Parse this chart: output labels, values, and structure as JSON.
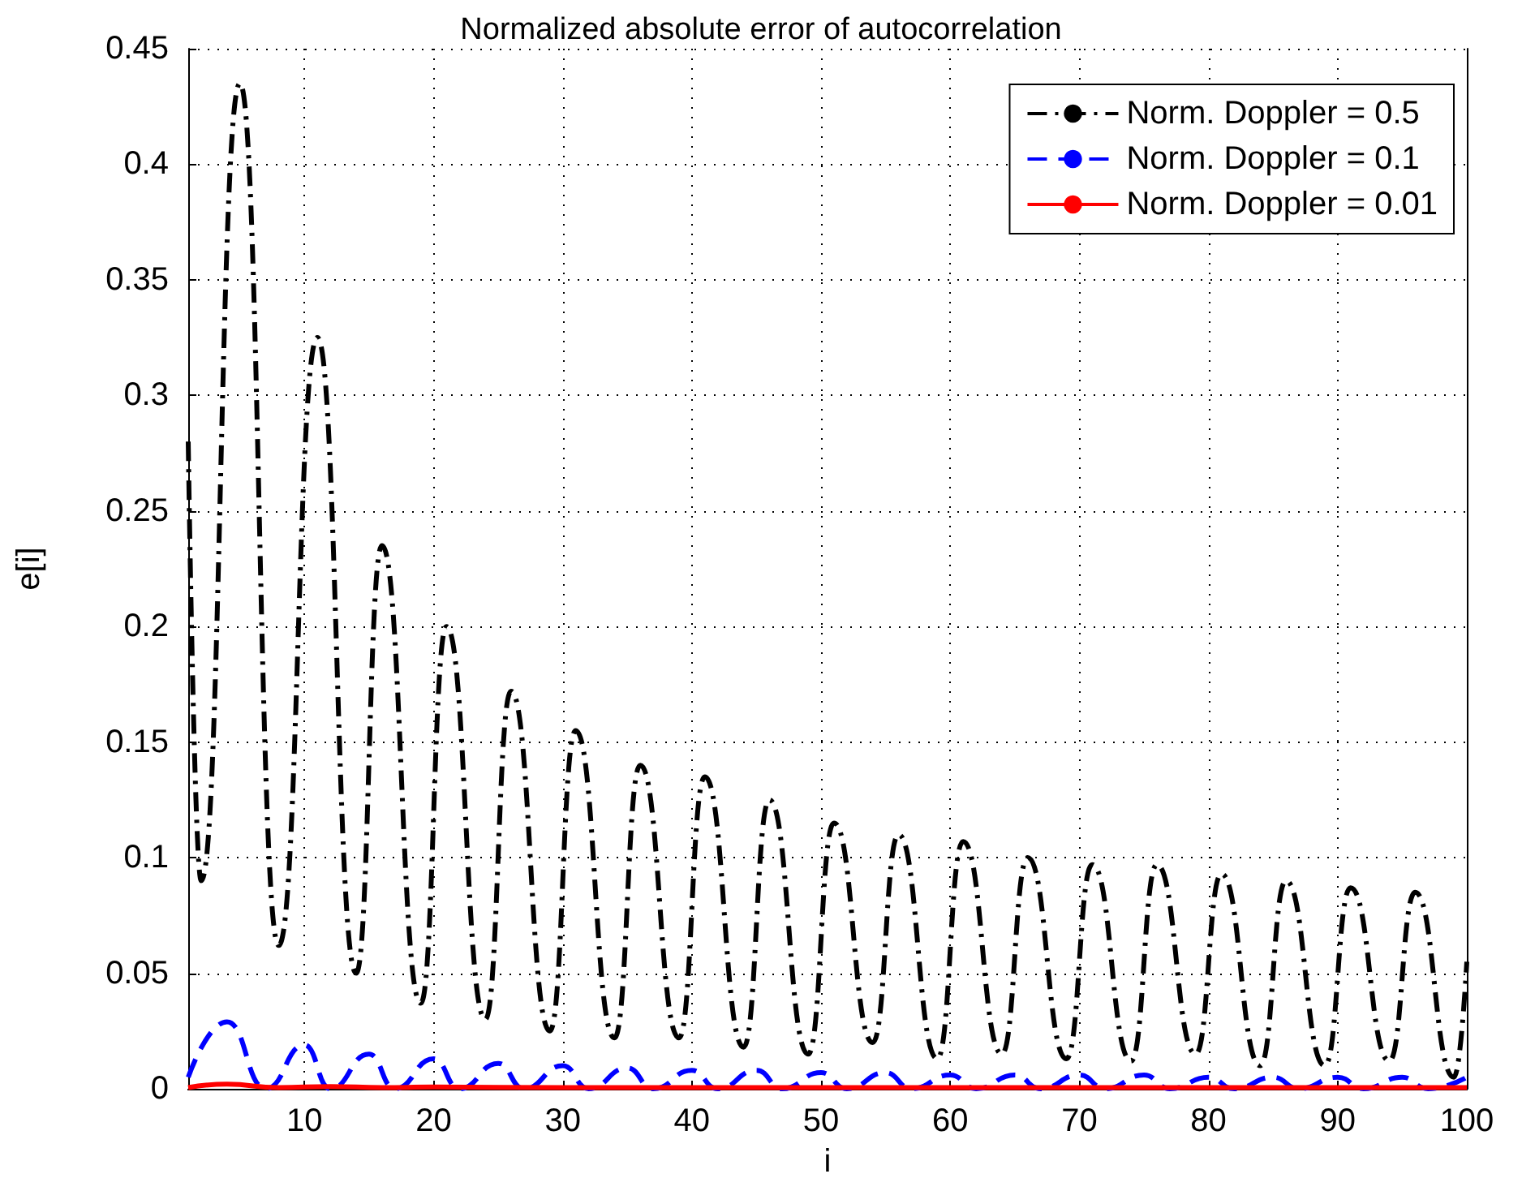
{
  "chart_data": {
    "type": "line",
    "title": "Normalized absolute error of autocorrelation",
    "xlabel": "i",
    "ylabel": "e[i]",
    "xlim": [
      1,
      100
    ],
    "xticks": [
      10,
      20,
      30,
      40,
      50,
      60,
      70,
      80,
      90,
      100
    ],
    "ylim": [
      0,
      0.45
    ],
    "yticks": [
      0,
      0.05,
      0.1,
      0.15,
      0.2,
      0.25,
      0.3,
      0.35,
      0.4,
      0.45
    ],
    "grid": true,
    "legend": "top right",
    "marker": "none",
    "series": [
      {
        "name": "Norm. Doppler = 0.5",
        "color": "#000000",
        "line_style": "dashdot",
        "x": [
          1,
          2,
          5,
          8,
          11,
          14,
          16,
          19,
          21,
          24,
          26,
          29,
          31,
          34,
          36,
          39,
          41,
          44,
          46,
          49,
          51,
          54,
          56,
          59,
          61,
          64,
          66,
          69,
          71,
          74,
          76,
          79,
          81,
          84,
          86,
          89,
          91,
          94,
          96,
          99,
          100
        ],
        "values": [
          0.28,
          0.09,
          0.435,
          0.062,
          0.325,
          0.05,
          0.235,
          0.037,
          0.2,
          0.03,
          0.172,
          0.025,
          0.155,
          0.022,
          0.14,
          0.022,
          0.135,
          0.018,
          0.125,
          0.015,
          0.115,
          0.02,
          0.11,
          0.013,
          0.107,
          0.015,
          0.1,
          0.013,
          0.097,
          0.012,
          0.097,
          0.015,
          0.093,
          0.01,
          0.09,
          0.01,
          0.087,
          0.012,
          0.085,
          0.005,
          0.055
        ]
      },
      {
        "name": "Norm. Doppler = 0.1",
        "color": "#0000ff",
        "line_style": "dashed",
        "x": [
          1,
          4,
          7,
          10,
          12,
          15,
          17,
          20,
          22,
          25,
          27,
          30,
          32,
          35,
          37,
          40,
          42,
          45,
          47,
          50,
          52,
          55,
          57,
          60,
          62,
          65,
          67,
          70,
          72,
          75,
          77,
          80,
          82,
          85,
          87,
          90,
          92,
          95,
          97,
          100
        ],
        "values": [
          0.005,
          0.029,
          0,
          0.019,
          0,
          0.015,
          0,
          0.013,
          0,
          0.011,
          0,
          0.01,
          0,
          0.009,
          0,
          0.008,
          0,
          0.008,
          0,
          0.007,
          0,
          0.007,
          0,
          0.006,
          0,
          0.006,
          0,
          0.006,
          0,
          0.006,
          0,
          0.005,
          0,
          0.005,
          0,
          0.005,
          0,
          0.005,
          0,
          0.005
        ]
      },
      {
        "name": "Norm. Doppler = 0.01",
        "color": "#ff0000",
        "line_style": "solid",
        "x": [
          1,
          4,
          8,
          12,
          16,
          20,
          30,
          100
        ],
        "values": [
          0.0005,
          0.002,
          0.0005,
          0.001,
          0.0005,
          0.0008,
          0.0005,
          0.0005
        ]
      }
    ]
  }
}
